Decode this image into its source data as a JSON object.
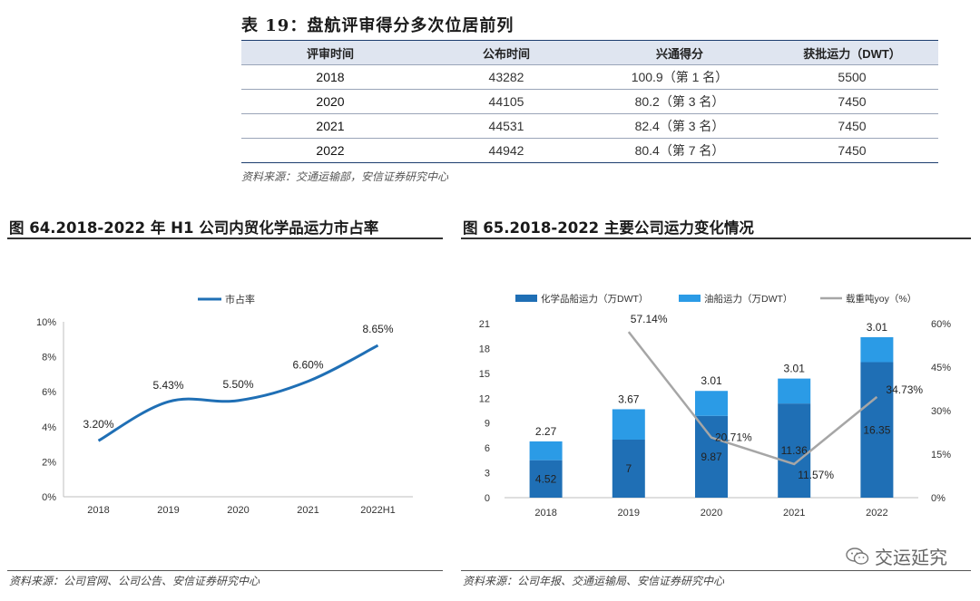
{
  "table": {
    "title": "表 19：盘航评审得分多次位居前列",
    "headers": [
      "评审时间",
      "公布时间",
      "兴通得分",
      "获批运力（DWT）"
    ],
    "rows": [
      [
        "2018",
        "43282",
        "100.9（第 1 名）",
        "5500"
      ],
      [
        "2020",
        "44105",
        "80.2（第 3 名）",
        "7450"
      ],
      [
        "2021",
        "44531",
        "82.4（第 3 名）",
        "7450"
      ],
      [
        "2022",
        "44942",
        "80.4（第 7 名）",
        "7450"
      ]
    ],
    "source": "资料来源：交通运输部，安信证券研究中心"
  },
  "fig64": {
    "title": "图 64.2018-2022 年 H1 公司内贸化学品运力市占率",
    "source": "资料来源：公司官网、公司公告、安信证券研究中心"
  },
  "fig65": {
    "title": "图 65.2018-2022 主要公司运力变化情况",
    "source": "资料来源：公司年报、交通运输局、安信证券研究中心"
  },
  "watermark": {
    "text": "交运延究",
    "icon": "wechat-icon"
  },
  "colors": {
    "dark_blue": "#1f6fb5",
    "light_blue": "#2b9be6",
    "line_gray": "#a6a6a6",
    "header_bg": "#dfe5f0"
  },
  "chart_data": [
    {
      "type": "line",
      "categories": [
        "2018",
        "2019",
        "2020",
        "2021",
        "2022H1"
      ],
      "series": [
        {
          "name": "市占率",
          "values": [
            3.2,
            5.43,
            5.5,
            6.6,
            8.65
          ]
        }
      ],
      "data_labels": [
        "3.20%",
        "5.43%",
        "5.50%",
        "6.60%",
        "8.65%"
      ],
      "ylim": [
        0,
        10
      ],
      "yticks": [
        "0%",
        "2%",
        "4%",
        "6%",
        "8%",
        "10%"
      ],
      "legend": "top-center",
      "grid": false,
      "color": "#1f6fb5"
    },
    {
      "type": "bar",
      "stacked": true,
      "categories": [
        "2018",
        "2019",
        "2020",
        "2021",
        "2022"
      ],
      "series": [
        {
          "name": "化学品船运力（万DWT）",
          "values": [
            4.52,
            7,
            9.87,
            11.36,
            16.35
          ],
          "labels": [
            "4.52",
            "7",
            "9.87",
            "11.36",
            "16.35"
          ],
          "color": "#1f6fb5"
        },
        {
          "name": "油船运力（万DWT）",
          "values": [
            2.27,
            3.67,
            3.01,
            3.01,
            3.01
          ],
          "labels": [
            "2.27",
            "3.67",
            "3.01",
            "3.01",
            "3.01"
          ],
          "color": "#2b9be6"
        }
      ],
      "line_series": {
        "name": "载重吨yoy（%）",
        "x": [
          "2019",
          "2020",
          "2021",
          "2022"
        ],
        "values": [
          57.14,
          20.71,
          11.57,
          34.73
        ],
        "labels": [
          "57.14%",
          "20.71%",
          "11.57%",
          "34.73%"
        ],
        "color": "#a6a6a6"
      },
      "ylim": [
        0,
        21
      ],
      "yticks": [
        "0",
        "3",
        "6",
        "9",
        "12",
        "15",
        "18",
        "21"
      ],
      "y2lim": [
        0,
        60
      ],
      "y2ticks": [
        "0%",
        "15%",
        "30%",
        "45%",
        "60%"
      ],
      "legend": "top",
      "grid": false
    }
  ]
}
